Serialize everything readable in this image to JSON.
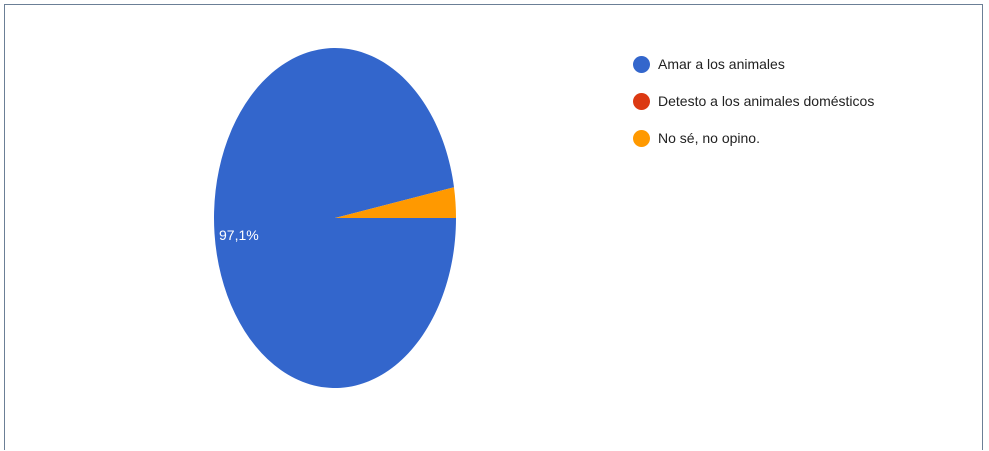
{
  "chart_data": {
    "type": "pie",
    "title": "",
    "slices": [
      {
        "label": "Amar a los animales",
        "value": 97.1,
        "color": "#3366cc",
        "label_text": "97,1%"
      },
      {
        "label": "Detesto a los animales domésticos",
        "value": 0,
        "color": "#dc3912"
      },
      {
        "label": "No sé, no opino.",
        "value": 2.9,
        "color": "#ff9900"
      }
    ],
    "legend_position": "right",
    "label_color": "#ffffff"
  }
}
